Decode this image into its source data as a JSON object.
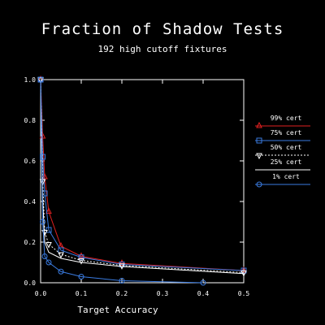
{
  "chart_data": {
    "type": "line",
    "title": "Fraction of Shadow Tests",
    "subtitle": "192 high cutoff fixtures",
    "xlabel": "Target Accuracy",
    "ylabel": "",
    "xlim": [
      0.0,
      0.5
    ],
    "ylim": [
      0.0,
      1.0
    ],
    "xticks": [
      "0.0",
      "0.1",
      "0.2",
      "0.3",
      "0.4",
      "0.5"
    ],
    "yticks": [
      "0.0",
      "0.2",
      "0.4",
      "0.6",
      "0.8",
      "1.0"
    ],
    "grid": false,
    "legend_position": "right",
    "series": [
      {
        "name": "99% cert",
        "color": "#e02020",
        "marker": "triangle-up",
        "dashed": false,
        "x": [
          0.0,
          0.005,
          0.01,
          0.02,
          0.05,
          0.1,
          0.2,
          0.5
        ],
        "y": [
          1.0,
          0.72,
          0.52,
          0.35,
          0.18,
          0.13,
          0.095,
          0.06
        ]
      },
      {
        "name": "75% cert",
        "color": "#3a7be0",
        "marker": "square",
        "dashed": false,
        "x": [
          0.0,
          0.005,
          0.01,
          0.02,
          0.05,
          0.1,
          0.2,
          0.5
        ],
        "y": [
          1.0,
          0.62,
          0.44,
          0.26,
          0.16,
          0.125,
          0.09,
          0.06
        ]
      },
      {
        "name": "50% cert",
        "color": "#ffffff",
        "marker": "triangle-down",
        "dashed": true,
        "x": [
          0.0,
          0.005,
          0.01,
          0.02,
          0.05,
          0.1,
          0.2,
          0.5
        ],
        "y": [
          1.0,
          0.5,
          0.25,
          0.19,
          0.14,
          0.11,
          0.085,
          0.05
        ]
      },
      {
        "name": "25% cert",
        "color": "#ffffff",
        "marker": "none",
        "dashed": false,
        "x": [
          0.0,
          0.005,
          0.01,
          0.02,
          0.05,
          0.1,
          0.2,
          0.5
        ],
        "y": [
          1.0,
          0.42,
          0.2,
          0.15,
          0.12,
          0.1,
          0.08,
          0.045
        ]
      },
      {
        "name": "1% cert",
        "color": "#3a7be0",
        "marker": "circle",
        "dashed": false,
        "x": [
          0.0,
          0.005,
          0.01,
          0.02,
          0.05,
          0.1,
          0.2,
          0.4
        ],
        "y": [
          1.0,
          0.3,
          0.13,
          0.1,
          0.055,
          0.03,
          0.01,
          0.0
        ]
      }
    ]
  }
}
